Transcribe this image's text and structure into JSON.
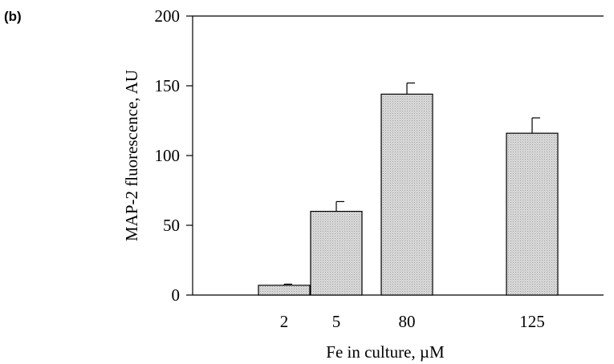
{
  "panel_label": "(b)",
  "chart_data": {
    "type": "bar",
    "categories": [
      "2",
      "5",
      "80",
      "125"
    ],
    "values": [
      7,
      60,
      144,
      116
    ],
    "errors": [
      0.8,
      7,
      8,
      11
    ],
    "xlabel": "Fe in culture,  µM",
    "ylabel": "MAP-2 fluorescence, AU",
    "ylim": [
      0,
      200
    ],
    "yticks": [
      0,
      50,
      100,
      150,
      200
    ],
    "grid": false,
    "legend": "none",
    "bar_fill": "#d4d4d4",
    "bar_stroke": "#000000"
  }
}
